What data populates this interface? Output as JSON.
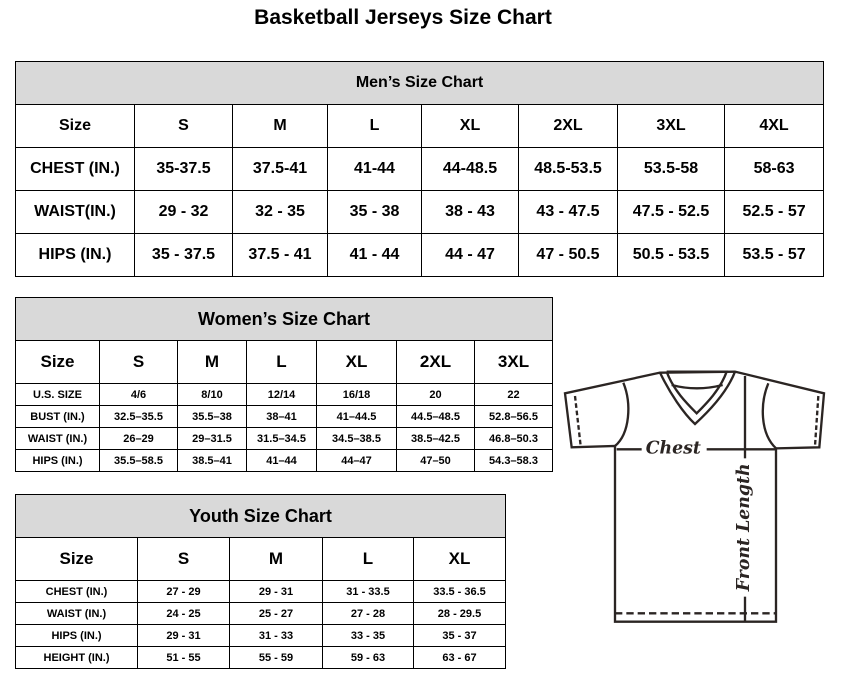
{
  "title": "Basketball Jerseys Size Chart",
  "men": {
    "heading": "Men’s Size Chart",
    "rows": [
      [
        "Size",
        "S",
        "M",
        "L",
        "XL",
        "2XL",
        "3XL",
        "4XL"
      ],
      [
        "CHEST (IN.)",
        "35-37.5",
        "37.5-41",
        "41-44",
        "44-48.5",
        "48.5-53.5",
        "53.5-58",
        "58-63"
      ],
      [
        "WAIST(IN.)",
        "29 - 32",
        "32 - 35",
        "35 - 38",
        "38 - 43",
        "43 - 47.5",
        "47.5 - 52.5",
        "52.5 - 57"
      ],
      [
        "HIPS (IN.)",
        "35 - 37.5",
        "37.5 - 41",
        "41 - 44",
        "44 - 47",
        "47 - 50.5",
        "50.5 - 53.5",
        "53.5 - 57"
      ]
    ]
  },
  "women": {
    "heading": "Women’s Size Chart",
    "rows": [
      [
        "Size",
        "S",
        "M",
        "L",
        "XL",
        "2XL",
        "3XL"
      ],
      [
        "U.S. SIZE",
        "4/6",
        "8/10",
        "12/14",
        "16/18",
        "20",
        "22"
      ],
      [
        "BUST (IN.)",
        "32.5–35.5",
        "35.5–38",
        "38–41",
        "41–44.5",
        "44.5–48.5",
        "52.8–56.5"
      ],
      [
        "WAIST (IN.)",
        "26–29",
        "29–31.5",
        "31.5–34.5",
        "34.5–38.5",
        "38.5–42.5",
        "46.8–50.3"
      ],
      [
        "HIPS (IN.)",
        "35.5–58.5",
        "38.5–41",
        "41–44",
        "44–47",
        "47–50",
        "54.3–58.3"
      ]
    ]
  },
  "youth": {
    "heading": "Youth Size Chart",
    "rows": [
      [
        "Size",
        "S",
        "M",
        "L",
        "XL"
      ],
      [
        "CHEST (IN.)",
        "27 - 29",
        "29 - 31",
        "31 - 33.5",
        "33.5 - 36.5"
      ],
      [
        "WAIST (IN.)",
        "24 - 25",
        "25 - 27",
        "27 - 28",
        "28 - 29.5"
      ],
      [
        "HIPS (IN.)",
        "29 - 31",
        "31 - 33",
        "33 - 35",
        "35 - 37"
      ],
      [
        "HEIGHT (IN.)",
        "51 - 55",
        "55 - 59",
        "59 - 63",
        "63 - 67"
      ]
    ]
  },
  "diagram": {
    "chest_label": "Chest",
    "length_label": "Front Length"
  }
}
